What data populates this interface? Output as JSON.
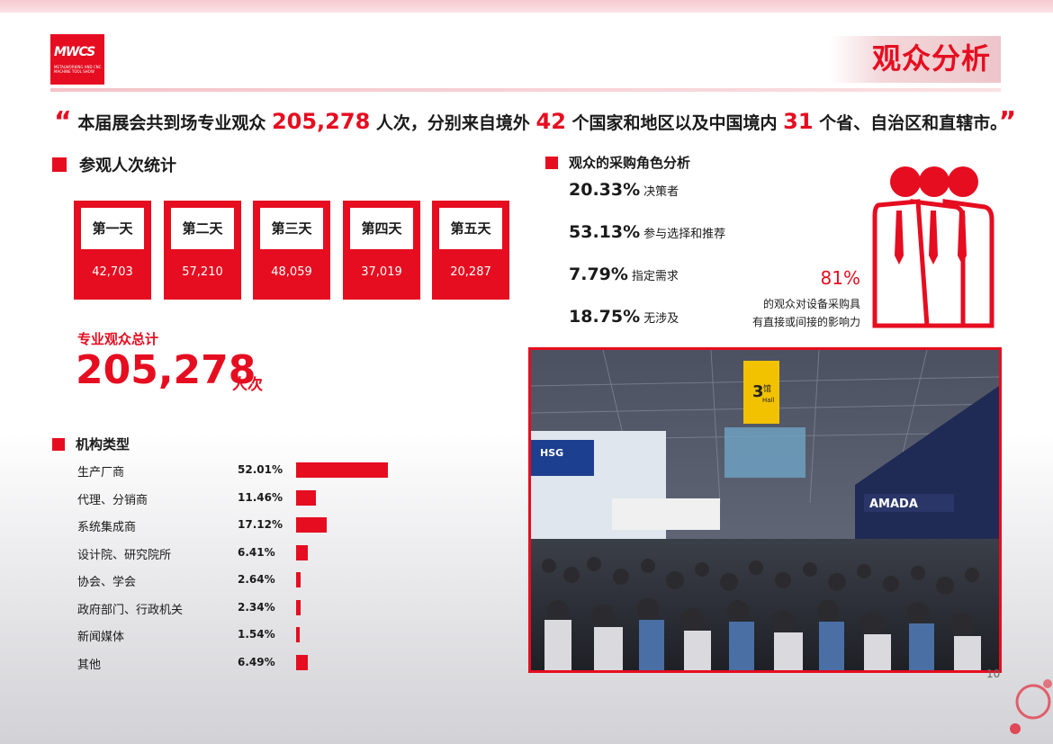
{
  "header": {
    "logo_text": "MWCS",
    "logo_sub": "METALWORKING AND CNC MACHINE TOOL SHOW",
    "title": "观众分析"
  },
  "quote": {
    "open": "“",
    "part1": " 本届展会共到场专业观众 ",
    "count": "205,278",
    "part2": " 人次，分别来自境外 ",
    "countries": "42",
    "part3": " 个国家和地区以及中国境内 ",
    "provinces": "31",
    "part4": " 个省、自治区和直辖市。",
    "close": "”"
  },
  "attendance": {
    "heading": "参观人次统计",
    "days": [
      {
        "label": "第一天",
        "value": "42,703"
      },
      {
        "label": "第二天",
        "value": "57,210"
      },
      {
        "label": "第三天",
        "value": "48,059"
      },
      {
        "label": "第四天",
        "value": "37,019"
      },
      {
        "label": "第五天",
        "value": "20,287"
      }
    ],
    "total_label": "专业观众总计",
    "total_value": "205,278",
    "total_unit": "人次"
  },
  "purchase_roles": {
    "heading": "观众的采购角色分析",
    "items": [
      {
        "pct": "20.33%",
        "name": "决策者"
      },
      {
        "pct": "53.13%",
        "name": "参与选择和推荐"
      },
      {
        "pct": "7.79%",
        "name": "指定需求"
      },
      {
        "pct": "18.75%",
        "name": "无涉及"
      }
    ],
    "influence_pct": "81%",
    "influence_line1": "的观众对设备采购具",
    "influence_line2": "有直接或间接的影响力",
    "colors": {
      "accent": "#e60d20"
    }
  },
  "org_types": {
    "heading": "机构类型",
    "items": [
      {
        "name": "生产厂商",
        "pct": "52.01%",
        "value": 52.01
      },
      {
        "name": "代理、分销商",
        "pct": "11.46%",
        "value": 11.46
      },
      {
        "name": "系统集成商",
        "pct": "17.12%",
        "value": 17.12
      },
      {
        "name": "设计院、研究院所",
        "pct": "6.41%",
        "value": 6.41
      },
      {
        "name": "协会、学会",
        "pct": "2.64%",
        "value": 2.64
      },
      {
        "name": "政府部门、行政机关",
        "pct": "2.34%",
        "value": 2.34
      },
      {
        "name": "新闻媒体",
        "pct": "1.54%",
        "value": 1.54
      },
      {
        "name": "其他",
        "pct": "6.49%",
        "value": 6.49
      }
    ]
  },
  "photo": {
    "hall_number": "3",
    "hall_cn": "馆",
    "hall_en": "Hall",
    "sign_brand": "AMADA",
    "booth_sign": "HSG"
  },
  "footer": {
    "page_number": "10"
  }
}
